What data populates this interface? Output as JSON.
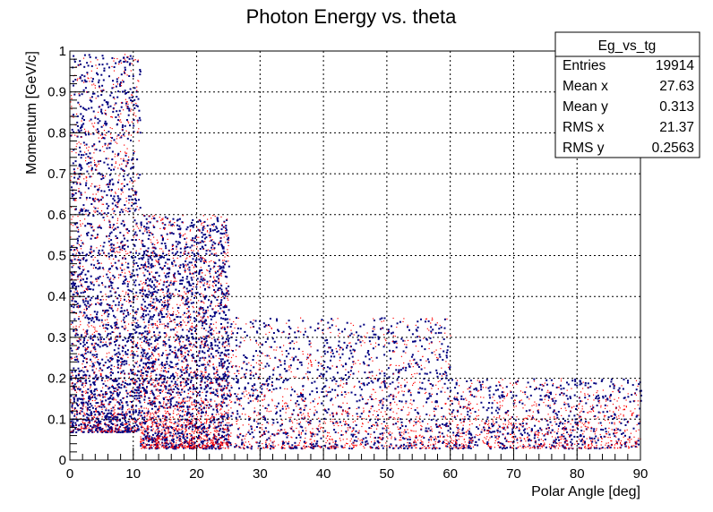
{
  "chart_data": {
    "type": "scatter",
    "title": "Photon Energy vs. theta",
    "xlabel": "Polar Angle [deg]",
    "ylabel": "Momentum [GeV/c]",
    "xlim": [
      0,
      90
    ],
    "ylim": [
      0,
      1
    ],
    "x_ticks": [
      "0",
      "10",
      "20",
      "30",
      "40",
      "50",
      "60",
      "70",
      "80",
      "90"
    ],
    "y_ticks": [
      "0",
      "0.1",
      "0.2",
      "0.3",
      "0.4",
      "0.5",
      "0.6",
      "0.7",
      "0.8",
      "0.9",
      "1"
    ],
    "grid": true,
    "series_colors": [
      "#00007f",
      "#ff0000"
    ],
    "stats_box": {
      "name": "Eg_vs_tg",
      "rows": [
        {
          "label": "Entries",
          "value": "19914"
        },
        {
          "label": "Mean x",
          "value": "27.63"
        },
        {
          "label": "Mean y",
          "value": "0.313"
        },
        {
          "label": "RMS x",
          "value": "21.37"
        },
        {
          "label": "RMS y",
          "value": "0.2563"
        }
      ]
    },
    "density_profile": {
      "note_free": true,
      "regions": [
        {
          "x": [
            0,
            11
          ],
          "y": [
            0.07,
            1.0
          ],
          "weight": 4.0
        },
        {
          "x": [
            11,
            25
          ],
          "y": [
            0.03,
            0.6
          ],
          "weight": 5.0
        },
        {
          "x": [
            25,
            60
          ],
          "y": [
            0.03,
            0.35
          ],
          "weight": 3.0
        },
        {
          "x": [
            60,
            90
          ],
          "y": [
            0.03,
            0.2
          ],
          "weight": 2.0
        }
      ]
    }
  }
}
